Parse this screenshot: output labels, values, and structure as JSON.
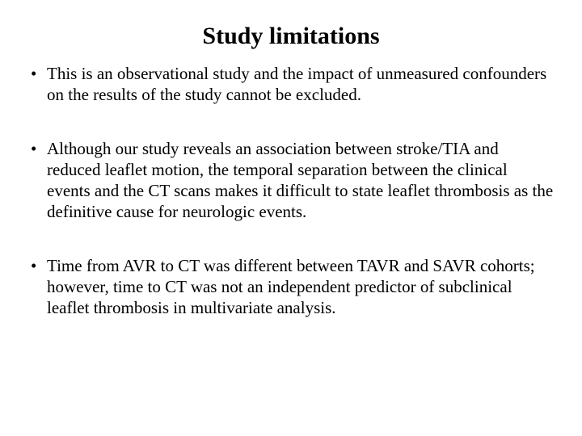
{
  "slide": {
    "title": "Study limitations",
    "bullets": [
      "This is an observational study and the impact of unmeasured confounders on the results of the study cannot be excluded.",
      "Although our study reveals an association between stroke/TIA and reduced leaflet motion, the temporal separation between the clinical events and the CT scans makes it difficult to state leaflet thrombosis as the definitive cause for neurologic events.",
      "Time from AVR to CT was different between TAVR and SAVR cohorts; however, time to CT was not an independent predictor of subclinical leaflet thrombosis in multivariate analysis."
    ],
    "colors": {
      "background": "#ffffff",
      "text": "#000000"
    },
    "typography": {
      "title_fontsize_pt": 24,
      "body_fontsize_pt": 17,
      "font_family": "Times New Roman"
    }
  }
}
